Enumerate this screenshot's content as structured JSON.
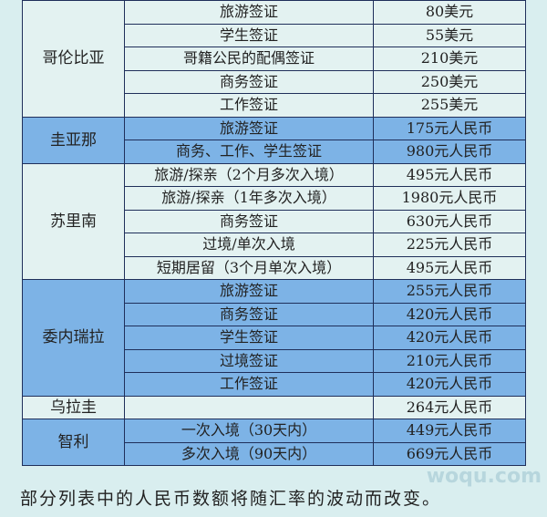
{
  "groups": [
    {
      "country": "哥伦比亚",
      "style": "l",
      "rows": [
        [
          "旅游签证",
          "80美元"
        ],
        [
          "学生签证",
          "55美元"
        ],
        [
          "哥籍公民的配偶签证",
          "210美元"
        ],
        [
          "商务签证",
          "250美元"
        ],
        [
          "工作签证",
          "255美元"
        ]
      ]
    },
    {
      "country": "圭亚那",
      "style": "b",
      "rows": [
        [
          "旅游签证",
          "175元人民币"
        ],
        [
          "商务、工作、学生签证",
          "980元人民币"
        ]
      ]
    },
    {
      "country": "苏里南",
      "style": "l",
      "rows": [
        [
          "旅游/探亲（2个月多次入境）",
          "495元人民币"
        ],
        [
          "旅游/探亲（1年多次入境）",
          "1980元人民币"
        ],
        [
          "商务签证",
          "630元人民币"
        ],
        [
          "过境/单次入境",
          "225元人民币"
        ],
        [
          "短期居留（3个月单次入境）",
          "495元人民币"
        ]
      ]
    },
    {
      "country": "委内瑞拉",
      "style": "b",
      "rows": [
        [
          "旅游签证",
          "255元人民币"
        ],
        [
          "商务签证",
          "420元人民币"
        ],
        [
          "学生签证",
          "420元人民币"
        ],
        [
          "过境签证",
          "210元人民币"
        ],
        [
          "工作签证",
          "420元人民币"
        ]
      ]
    },
    {
      "country": "乌拉圭",
      "style": "l",
      "rows": [
        [
          "",
          "264元人民币"
        ]
      ]
    },
    {
      "country": "智利",
      "style": "b",
      "rows": [
        [
          "一次入境（30天内）",
          "449元人民币"
        ],
        [
          "多次入境（90天内）",
          "669元人民币"
        ]
      ]
    }
  ],
  "caption": "部分列表中的人民币数额将随汇率的波动而改变。",
  "watermark": "woqu.com",
  "colors": {
    "blue_row": "#7db3e6",
    "light_row": "#e3f2f1",
    "border": "#1f2f5a"
  }
}
